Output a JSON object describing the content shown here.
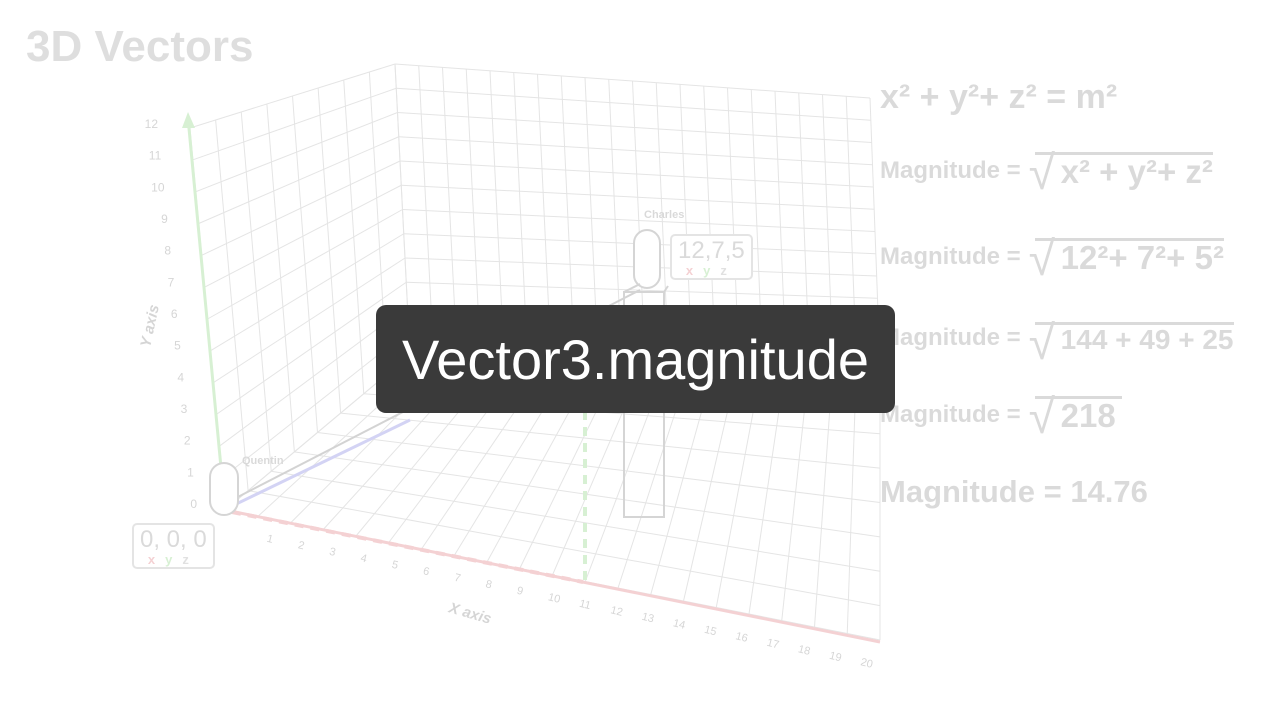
{
  "title": "3D Vectors",
  "caption": "Vector3.magnitude",
  "axes": {
    "x_label": "X axis",
    "y_label": "Y axis",
    "y_ticks": [
      "0",
      "1",
      "2",
      "3",
      "4",
      "5",
      "6",
      "7",
      "8",
      "9",
      "10",
      "11",
      "12"
    ],
    "x_ticks": [
      "1",
      "2",
      "3",
      "4",
      "5",
      "6",
      "7",
      "8",
      "9",
      "10",
      "11",
      "12",
      "13",
      "14",
      "15",
      "16",
      "17",
      "18",
      "19",
      "20"
    ]
  },
  "characters": {
    "origin": {
      "name": "Quentin",
      "coords": "0, 0, 0"
    },
    "target": {
      "name": "Charles",
      "coords": "12,7,5"
    }
  },
  "axis_letters": {
    "x": "x",
    "y": "y",
    "z": "z"
  },
  "equations": {
    "pythagoras": {
      "lhs": "x² + y²+ z² = m²"
    },
    "line1": {
      "label": "Magnitude =",
      "expr": "x² + y²+ z²"
    },
    "line2": {
      "label": "Magnitude =",
      "expr": "12²+ 7²+ 5²"
    },
    "line3": {
      "label": "Magnitude =",
      "expr": "144 + 49 + 25"
    },
    "line4": {
      "label": "Magnitude =",
      "expr": "218"
    },
    "result": "Magnitude = 14.76"
  },
  "colors": {
    "x_axis": "#d0323a",
    "y_axis": "#4cbf3a",
    "z_axis": "#3a3ad0",
    "caption_bg": "#3a3a3a"
  }
}
